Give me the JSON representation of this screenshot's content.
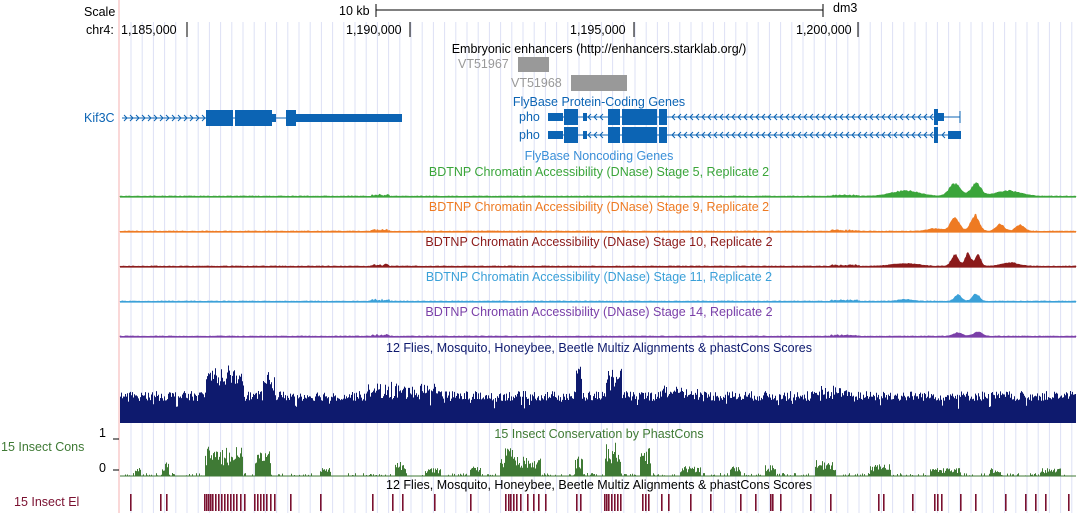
{
  "header": {
    "scale_label": "Scale",
    "chrom_label": "chr4:",
    "scale_bar_text": "10 kb",
    "assembly": "dm3",
    "positions": [
      "1,185,000",
      "1,190,000",
      "1,195,000",
      "1,200,000"
    ]
  },
  "tracks": {
    "enhancers": {
      "title": "Embryonic enhancers (http://enhancers.starklab.org/)",
      "items": [
        "VT51967",
        "VT51968"
      ],
      "color": "#999999"
    },
    "flybase_coding": {
      "title": "FlyBase Protein-Coding Genes",
      "left_label": "Kif3C",
      "genes": [
        "pho",
        "pho"
      ],
      "color": "#0c64b4"
    },
    "flybase_noncoding": {
      "title": "FlyBase Noncoding Genes",
      "color": "#3a8fd8"
    },
    "dnase": [
      {
        "title": "BDTNP Chromatin Accessibility (DNase) Stage 5, Replicate 2",
        "color": "#3aa53a"
      },
      {
        "title": "BDTNP Chromatin Accessibility (DNase) Stage 9, Replicate 2",
        "color": "#ee7a22"
      },
      {
        "title": "BDTNP Chromatin Accessibility (DNase) Stage 10, Replicate 2",
        "color": "#8b1a1a"
      },
      {
        "title": "BDTNP Chromatin Accessibility (DNase) Stage 11, Replicate 2",
        "color": "#3aa0d8"
      },
      {
        "title": "BDTNP Chromatin Accessibility (DNase) Stage 14, Replicate 2",
        "color": "#7a3fa8"
      }
    ],
    "multiz": {
      "title": "12 Flies, Mosquito, Honeybee, Beetle Multiz Alignments & phastCons Scores",
      "color": "#0e1a6e"
    },
    "insect_cons": {
      "left_label": "15 Insect Cons",
      "axis_max": "1",
      "axis_min": "0",
      "title": "15 Insect Conservation by PhastCons",
      "color": "#3f7a35"
    },
    "insect_el": {
      "left_label": "15 Insect El",
      "title": "12 Flies, Mosquito, Honeybee, Beetle Multiz Alignments & phastCons Scores",
      "color": "#7a1030"
    }
  }
}
